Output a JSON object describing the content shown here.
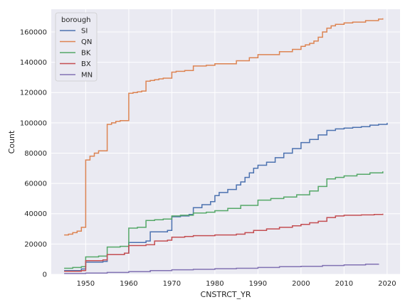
{
  "chart_data": {
    "type": "line",
    "drawstyle": "steps-post",
    "title": "",
    "xlabel": "CNSTRCT_YR",
    "ylabel": "Count",
    "xlim": [
      1942,
      2023
    ],
    "ylim": [
      0,
      175000
    ],
    "xticks": [
      1950,
      1960,
      1970,
      1980,
      1990,
      2000,
      2010,
      2020
    ],
    "yticks": [
      0,
      20000,
      40000,
      60000,
      80000,
      100000,
      120000,
      140000,
      160000
    ],
    "grid": true,
    "legend": {
      "title": "borough",
      "placement": "top-left"
    },
    "series": [
      {
        "name": "SI",
        "color": "#4c72b0",
        "x": [
          1945,
          1949,
          1950,
          1954,
          1955,
          1959,
          1960,
          1964,
          1965,
          1969,
          1970,
          1972,
          1974,
          1975,
          1977,
          1979,
          1980,
          1981,
          1983,
          1985,
          1986,
          1987,
          1988,
          1989,
          1990,
          1992,
          1994,
          1996,
          1998,
          2000,
          2002,
          2004,
          2006,
          2008,
          2010,
          2012,
          2014,
          2016,
          2018,
          2020
        ],
        "y": [
          2500,
          3500,
          8000,
          8500,
          13000,
          14000,
          21000,
          22000,
          28000,
          29000,
          38000,
          38500,
          39500,
          44000,
          46000,
          48000,
          52000,
          54000,
          56000,
          59000,
          61000,
          64000,
          67000,
          70000,
          72000,
          74000,
          77000,
          80000,
          83000,
          87000,
          89000,
          92000,
          95000,
          96000,
          96500,
          97000,
          97500,
          98500,
          99000,
          100000
        ]
      },
      {
        "name": "QN",
        "color": "#dd8452",
        "x": [
          1945,
          1946,
          1947,
          1948,
          1949,
          1950,
          1951,
          1952,
          1953,
          1955,
          1956,
          1957,
          1958,
          1960,
          1961,
          1962,
          1963,
          1964,
          1965,
          1966,
          1967,
          1968,
          1970,
          1971,
          1973,
          1975,
          1978,
          1980,
          1985,
          1988,
          1990,
          1995,
          1998,
          2000,
          2001,
          2002,
          2003,
          2004,
          2005,
          2006,
          2007,
          2008,
          2010,
          2012,
          2015,
          2018,
          2019
        ],
        "y": [
          26000,
          26500,
          27500,
          28500,
          31000,
          75500,
          78000,
          80000,
          81500,
          99000,
          100000,
          101000,
          101500,
          119500,
          120000,
          120500,
          121000,
          127500,
          128000,
          128500,
          129000,
          129500,
          133500,
          134000,
          134500,
          137500,
          138000,
          139000,
          141000,
          143000,
          145000,
          147000,
          148500,
          150500,
          151500,
          152500,
          154000,
          156500,
          160000,
          162500,
          164000,
          165000,
          166000,
          166500,
          167500,
          168500,
          169000
        ]
      },
      {
        "name": "BK",
        "color": "#55a868",
        "x": [
          1945,
          1947,
          1949,
          1950,
          1953,
          1955,
          1958,
          1960,
          1962,
          1964,
          1966,
          1968,
          1970,
          1972,
          1975,
          1978,
          1980,
          1983,
          1986,
          1990,
          1993,
          1996,
          1999,
          2002,
          2004,
          2006,
          2008,
          2010,
          2013,
          2016,
          2019
        ],
        "y": [
          4000,
          4500,
          5000,
          11500,
          12000,
          18000,
          18500,
          30500,
          31000,
          35500,
          36000,
          36500,
          38500,
          39000,
          40500,
          41000,
          42000,
          43500,
          45500,
          49000,
          50000,
          51000,
          52500,
          55000,
          58000,
          63000,
          64000,
          65000,
          66000,
          67000,
          68000
        ]
      },
      {
        "name": "BX",
        "color": "#c44e52",
        "x": [
          1945,
          1949,
          1950,
          1954,
          1955,
          1959,
          1960,
          1964,
          1966,
          1969,
          1970,
          1973,
          1975,
          1980,
          1985,
          1987,
          1989,
          1992,
          1995,
          1998,
          2000,
          2002,
          2004,
          2006,
          2008,
          2010,
          2014,
          2017,
          2019
        ],
        "y": [
          2000,
          2500,
          9000,
          9500,
          13000,
          14000,
          19000,
          19500,
          22000,
          22500,
          24500,
          25000,
          25500,
          26000,
          26500,
          27500,
          29000,
          30000,
          31000,
          32000,
          33000,
          34000,
          35000,
          37500,
          38500,
          39000,
          39200,
          39500,
          40000
        ]
      },
      {
        "name": "MN",
        "color": "#8172b3",
        "x": [
          1945,
          1950,
          1955,
          1960,
          1965,
          1970,
          1975,
          1980,
          1985,
          1990,
          1995,
          2000,
          2005,
          2010,
          2015,
          2018
        ],
        "y": [
          500,
          800,
          1200,
          1800,
          2500,
          3000,
          3300,
          3700,
          4000,
          4500,
          5000,
          5300,
          5800,
          6200,
          6700,
          7000
        ]
      }
    ]
  }
}
